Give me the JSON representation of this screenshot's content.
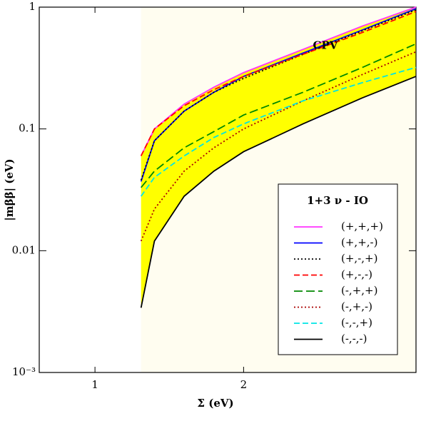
{
  "chart_data": {
    "type": "line",
    "xlabel": "Σ (eV)",
    "ylabel": "|mββ| (eV)",
    "annotation": {
      "text": "CPV",
      "x": 2.55,
      "y": 0.48
    },
    "legend_title": "1+3 ν - IO",
    "legend": "lower right",
    "log_y": true,
    "band_color": "#ffff00",
    "region_color": "#fffdf0",
    "x": [
      1.31,
      1.4,
      1.6,
      1.8,
      2.0,
      2.4,
      2.8,
      3.16
    ],
    "xlim": [
      0.625,
      3.16
    ],
    "xticks": [
      1,
      2
    ],
    "ylim": [
      0.001,
      1
    ],
    "yticks": [
      1,
      0.1,
      0.01,
      {
        "value": 0.001,
        "label": "10⁻³"
      }
    ],
    "series": [
      {
        "name": "(+,+,+)",
        "color": "#ff33ff",
        "dash": "solid",
        "values": [
          0.06,
          0.1,
          0.16,
          0.22,
          0.29,
          0.45,
          0.7,
          1.0
        ]
      },
      {
        "name": "(+,+,-)",
        "color": "#0000ff",
        "dash": "solid",
        "values": [
          0.037,
          0.08,
          0.14,
          0.2,
          0.27,
          0.42,
          0.65,
          0.97
        ]
      },
      {
        "name": "(+,-,+)",
        "color": "#000000",
        "dash": "dot",
        "values": [
          0.038,
          0.08,
          0.14,
          0.2,
          0.26,
          0.41,
          0.64,
          0.95
        ]
      },
      {
        "name": "(+,-,-)",
        "color": "#ff0000",
        "dash": "dash",
        "values": [
          0.06,
          0.1,
          0.155,
          0.21,
          0.27,
          0.41,
          0.62,
          0.92
        ]
      },
      {
        "name": "(-,+,+)",
        "color": "#008800",
        "dash": "longdash",
        "values": [
          0.033,
          0.045,
          0.07,
          0.095,
          0.13,
          0.2,
          0.32,
          0.5
        ]
      },
      {
        "name": "(-,+,-)",
        "color": "#aa0000",
        "dash": "dot",
        "values": [
          0.012,
          0.022,
          0.045,
          0.07,
          0.1,
          0.17,
          0.28,
          0.43
        ]
      },
      {
        "name": "(-,-,+)",
        "color": "#00e5e5",
        "dash": "dash",
        "values": [
          0.028,
          0.04,
          0.06,
          0.085,
          0.11,
          0.17,
          0.24,
          0.32
        ]
      },
      {
        "name": "(-,-,-)",
        "color": "#000000",
        "dash": "solid",
        "values": [
          0.0034,
          0.012,
          0.028,
          0.045,
          0.065,
          0.11,
          0.18,
          0.27
        ]
      }
    ]
  }
}
